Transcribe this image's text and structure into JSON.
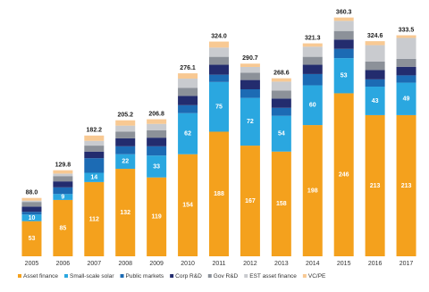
{
  "chart_data": {
    "type": "stacked-bar",
    "categories": [
      "2005",
      "2006",
      "2007",
      "2008",
      "2009",
      "2010",
      "2011",
      "2012",
      "2013",
      "2014",
      "2015",
      "2016",
      "2017"
    ],
    "series": [
      {
        "name": "Asset finance",
        "color": "#f4a11d",
        "show_labels": true,
        "values": [
          53,
          85,
          112,
          132,
          119,
          154,
          188,
          167,
          158,
          198,
          246,
          213,
          213
        ]
      },
      {
        "name": "Small-scale solar",
        "color": "#2aa7e0",
        "show_labels": true,
        "values": [
          10,
          9,
          14,
          22,
          33,
          62,
          75,
          72,
          54,
          60,
          53,
          43,
          49
        ]
      },
      {
        "name": "Public markets",
        "color": "#1c6bb4",
        "show_labels": false,
        "values": [
          4,
          10,
          22,
          12,
          14,
          12,
          11,
          13,
          12,
          17,
          14,
          11,
          11
        ]
      },
      {
        "name": "Corp R&D",
        "color": "#232c6e",
        "show_labels": false,
        "values": [
          8,
          9,
          10,
          12,
          13,
          14,
          15,
          14,
          14,
          14,
          14,
          14,
          13
        ]
      },
      {
        "name": "Gov R&D",
        "color": "#8c9199",
        "show_labels": false,
        "values": [
          7,
          8,
          9,
          10,
          11,
          12,
          12,
          11,
          12,
          12,
          13,
          13,
          12
        ]
      },
      {
        "name": "EST asset finance",
        "color": "#c9cbcf",
        "show_labels": false,
        "values": [
          2,
          3.8,
          7.2,
          9.2,
          9.8,
          14.1,
          14,
          8.7,
          13.6,
          15.3,
          15.3,
          24.6,
          31.5
        ]
      },
      {
        "name": "VC/PE",
        "color": "#f8c993",
        "show_labels": false,
        "values": [
          4,
          5,
          8,
          8,
          7,
          8,
          9,
          5,
          5,
          5,
          5,
          6,
          4
        ]
      }
    ],
    "totals": {
      "values": [
        88.0,
        129.8,
        182.2,
        205.2,
        206.8,
        276.1,
        324.0,
        290.7,
        268.6,
        321.3,
        360.3,
        324.6,
        333.5
      ],
      "value_labels": [
        "88.0",
        "129.8",
        "182.2",
        "205.2",
        "206.8",
        "276.1",
        "324.0",
        "290.7",
        "268.6",
        "321.3",
        "360.3",
        "324.6",
        "333.5"
      ]
    },
    "ylim": [
      0,
      380
    ]
  }
}
